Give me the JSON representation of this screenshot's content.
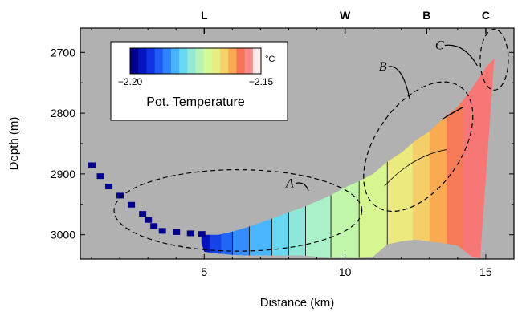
{
  "chart_data": {
    "type": "heatmap",
    "title": "",
    "xlabel": "Distance (km)",
    "ylabel": "Depth (m)",
    "xlim": [
      0.6,
      16.0
    ],
    "ylim": [
      3040,
      2660
    ],
    "y_inverted": true,
    "x_ticks": [
      5,
      10,
      15
    ],
    "y_ticks": [
      2700,
      2800,
      2900,
      3000
    ],
    "x_tick_labels": [
      "5",
      "10",
      "15"
    ],
    "y_tick_labels": [
      "2700",
      "2800",
      "2900",
      "3000"
    ],
    "top_labels": [
      {
        "text": "L",
        "x": 5.0
      },
      {
        "text": "W",
        "x": 10.0
      },
      {
        "text": "B",
        "x": 12.9
      },
      {
        "text": "C",
        "x": 15.0
      }
    ],
    "colorbar": {
      "label": "Pot. Temperature",
      "unit": "°C",
      "min_label": "−2.20",
      "max_label": "−2.15",
      "vmin": -2.2,
      "vmax": -2.15,
      "colormap": "jet"
    },
    "background_color": "#b1b1b1",
    "data_bottom_profile": {
      "x": [
        0.9,
        1.3,
        1.8,
        2.3,
        2.8,
        3.2,
        3.5,
        4.0,
        4.5,
        5.0,
        5.5,
        6.0,
        6.5,
        7.0,
        7.5,
        8.0,
        8.5,
        9.0,
        9.5,
        10.0,
        10.5,
        11.0,
        11.5,
        12.0,
        12.5,
        13.0,
        13.5,
        14.0,
        14.5,
        14.8
      ],
      "depth": [
        2885,
        2905,
        2935,
        2950,
        2970,
        2990,
        3010,
        3018,
        3020,
        3022,
        3025,
        3027,
        3028,
        3028,
        3028,
        3028,
        3028,
        3030,
        3032,
        3032,
        3032,
        3030,
        3010,
        3005,
        3002,
        3005,
        3008,
        3012,
        3030,
        3033
      ]
    },
    "data_top_profile": {
      "x": [
        4.8,
        5.5,
        6.0,
        6.5,
        7.0,
        7.5,
        8.0,
        8.5,
        9.0,
        9.5,
        10.0,
        10.5,
        11.0,
        11.5,
        12.0,
        12.5,
        13.0,
        13.5,
        14.0,
        14.5,
        15.0,
        15.3
      ],
      "depth": [
        3000,
        3000,
        2995,
        2988,
        2980,
        2972,
        2963,
        2955,
        2945,
        2935,
        2922,
        2912,
        2900,
        2880,
        2865,
        2845,
        2830,
        2808,
        2790,
        2760,
        2725,
        2710
      ]
    },
    "series": [
      {
        "x": [
          1.0,
          1.3,
          1.6,
          2.0,
          2.4,
          2.8,
          3.0,
          3.2,
          3.5,
          4.0,
          4.5,
          4.9
        ],
        "depth": [
          2885,
          2903,
          2920,
          2935,
          2950,
          2965,
          2975,
          2985,
          2993,
          2995,
          2997,
          2998
        ],
        "value": -2.2
      }
    ],
    "columns": [
      {
        "x0": 4.9,
        "x1": 5.2,
        "value": -2.197
      },
      {
        "x0": 5.2,
        "x1": 5.6,
        "value": -2.192
      },
      {
        "x0": 5.6,
        "x1": 6.0,
        "value": -2.189
      },
      {
        "x0": 6.0,
        "x1": 6.6,
        "value": -2.186
      },
      {
        "x0": 6.6,
        "x1": 7.4,
        "value": -2.183
      },
      {
        "x0": 7.4,
        "x1": 8.0,
        "value": -2.18
      },
      {
        "x0": 8.0,
        "x1": 8.6,
        "value": -2.177
      },
      {
        "x0": 8.6,
        "x1": 9.5,
        "value": -2.175
      },
      {
        "x0": 9.5,
        "x1": 10.5,
        "value": -2.172
      },
      {
        "x0": 10.5,
        "x1": 11.5,
        "value": -2.169
      },
      {
        "x0": 11.5,
        "x1": 12.4,
        "value": -2.166
      },
      {
        "x0": 12.4,
        "x1": 13.0,
        "value": -2.163
      },
      {
        "x0": 13.0,
        "x1": 13.6,
        "value": -2.16
      },
      {
        "x0": 13.6,
        "x1": 14.2,
        "value": -2.157
      },
      {
        "x0": 14.2,
        "x1": 15.3,
        "value": -2.154
      }
    ],
    "annotations": [
      {
        "label": "A",
        "ellipse_center": [
          6.2,
          2960
        ],
        "ellipse_rx_km": 4.4,
        "ellipse_ry_m": 67
      },
      {
        "label": "B",
        "ellipse_center": [
          12.6,
          2855
        ],
        "ellipse_rx_km": 2.6,
        "ellipse_ry_m": 70
      },
      {
        "label": "C",
        "ellipse_center": [
          15.3,
          2712
        ],
        "ellipse_rx_km": 0.5,
        "ellipse_ry_m": 50
      }
    ],
    "grid": false
  }
}
